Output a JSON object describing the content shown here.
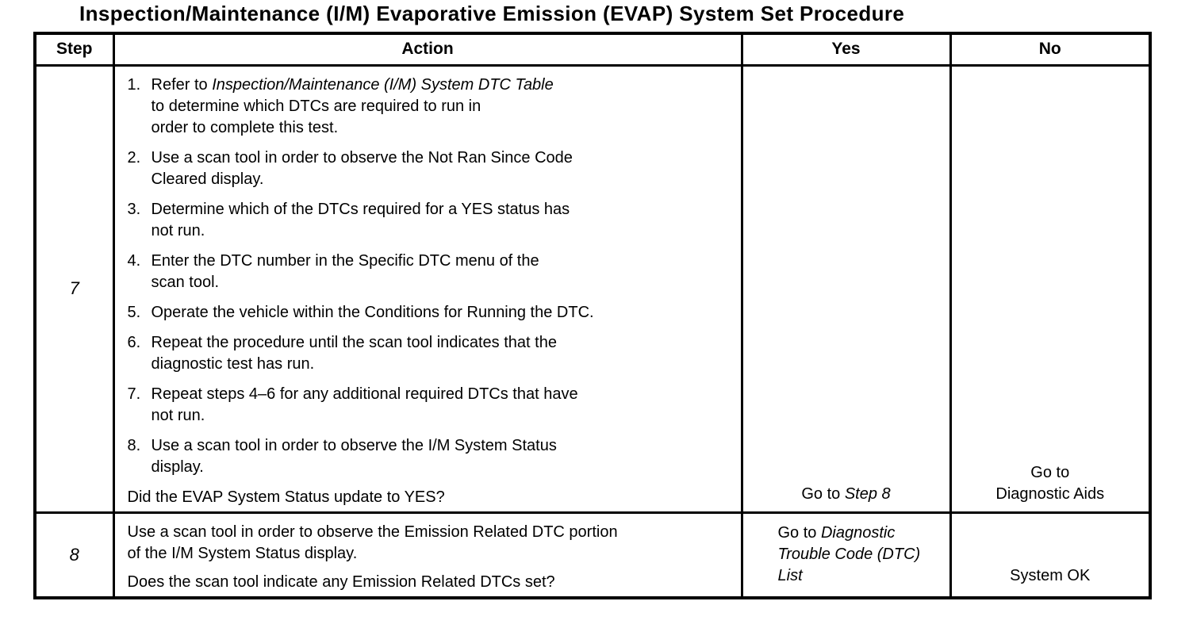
{
  "title": "Inspection/Maintenance (I/M) Evaporative Emission (EVAP) System Set Procedure",
  "table": {
    "headers": [
      "Step",
      "Action",
      "Yes",
      "No"
    ],
    "rows": [
      {
        "step": "7",
        "action": {
          "list": [
            {
              "num": "1.",
              "lines": [
                {
                  "segs": [
                    {
                      "t": "Refer to "
                    },
                    {
                      "t": "Inspection/Maintenance (I/M) System DTC Table",
                      "i": true
                    }
                  ]
                },
                {
                  "segs": [
                    {
                      "t": "to determine which DTCs are required to run in"
                    }
                  ]
                },
                {
                  "segs": [
                    {
                      "t": "order to complete this test."
                    }
                  ]
                }
              ]
            },
            {
              "num": "2.",
              "lines": [
                {
                  "segs": [
                    {
                      "t": "Use a scan tool in order to observe the Not Ran Since Code"
                    }
                  ]
                },
                {
                  "segs": [
                    {
                      "t": "Cleared display."
                    }
                  ]
                }
              ]
            },
            {
              "num": "3.",
              "lines": [
                {
                  "segs": [
                    {
                      "t": "Determine which of the DTCs required for a YES status has"
                    }
                  ]
                },
                {
                  "segs": [
                    {
                      "t": "not run."
                    }
                  ]
                }
              ]
            },
            {
              "num": "4.",
              "lines": [
                {
                  "segs": [
                    {
                      "t": "Enter the DTC number in the Specific DTC menu of the"
                    }
                  ]
                },
                {
                  "segs": [
                    {
                      "t": "scan tool."
                    }
                  ]
                }
              ]
            },
            {
              "num": "5.",
              "lines": [
                {
                  "segs": [
                    {
                      "t": "Operate the vehicle within the Conditions for Running the DTC."
                    }
                  ]
                }
              ]
            },
            {
              "num": "6.",
              "lines": [
                {
                  "segs": [
                    {
                      "t": "Repeat the procedure until the scan tool indicates that the"
                    }
                  ]
                },
                {
                  "segs": [
                    {
                      "t": "diagnostic test has run."
                    }
                  ]
                }
              ]
            },
            {
              "num": "7.",
              "lines": [
                {
                  "segs": [
                    {
                      "t": "Repeat steps 4–6 for any additional required DTCs that have"
                    }
                  ]
                },
                {
                  "segs": [
                    {
                      "t": "not run."
                    }
                  ]
                }
              ]
            },
            {
              "num": "8.",
              "lines": [
                {
                  "segs": [
                    {
                      "t": "Use a scan tool in order to observe the I/M System Status"
                    }
                  ]
                },
                {
                  "segs": [
                    {
                      "t": "display."
                    }
                  ]
                }
              ]
            }
          ],
          "question": "Did the EVAP System Status update to YES?"
        },
        "yes": {
          "lines": [
            {
              "segs": [
                {
                  "t": "Go to "
                },
                {
                  "t": "Step 8",
                  "i": true
                }
              ]
            }
          ]
        },
        "no": {
          "lines": [
            {
              "segs": [
                {
                  "t": "Go to"
                }
              ]
            },
            {
              "segs": [
                {
                  "t": "Diagnostic Aids"
                }
              ]
            }
          ]
        }
      },
      {
        "step": "8",
        "action": {
          "paras": [
            {
              "lines": [
                {
                  "segs": [
                    {
                      "t": "Use a scan tool in order to observe the Emission Related DTC portion"
                    }
                  ]
                },
                {
                  "segs": [
                    {
                      "t": "of the I/M System Status display."
                    }
                  ]
                }
              ]
            },
            {
              "lines": [
                {
                  "segs": [
                    {
                      "t": "Does the scan tool indicate any Emission Related DTCs set?"
                    }
                  ]
                }
              ]
            }
          ]
        },
        "yes": {
          "lines": [
            {
              "segs": [
                {
                  "t": "Go to "
                },
                {
                  "t": "Diagnostic",
                  "i": true
                }
              ]
            },
            {
              "segs": [
                {
                  "t": "Trouble Code (DTC)",
                  "i": true
                }
              ]
            },
            {
              "segs": [
                {
                  "t": "List",
                  "i": true
                }
              ]
            }
          ]
        },
        "no": {
          "lines": [
            {
              "segs": [
                {
                  "t": "System OK"
                }
              ]
            }
          ]
        }
      }
    ]
  }
}
